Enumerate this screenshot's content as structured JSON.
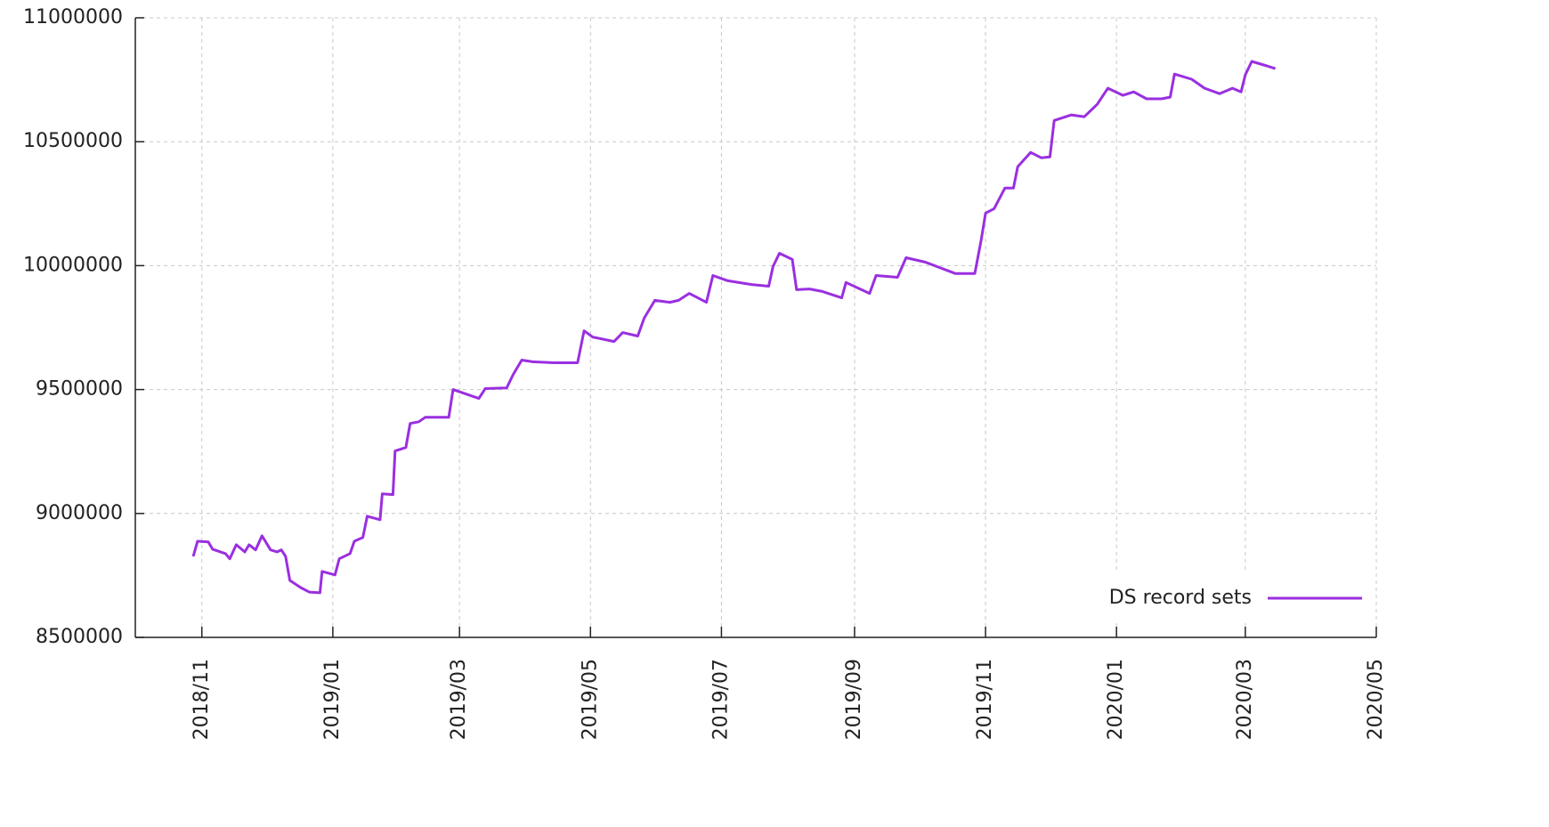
{
  "chart_data": {
    "type": "line",
    "x": [
      "2018-10-28",
      "2018-10-30",
      "2018-11-04",
      "2018-11-06",
      "2018-11-12",
      "2018-11-14",
      "2018-11-17",
      "2018-11-21",
      "2018-11-23",
      "2018-11-26",
      "2018-11-29",
      "2018-12-03",
      "2018-12-06",
      "2018-12-08",
      "2018-12-10",
      "2018-12-12",
      "2018-12-17",
      "2018-12-21",
      "2018-12-26",
      "2018-12-27",
      "2019-01-02",
      "2019-01-04",
      "2019-01-09",
      "2019-01-11",
      "2019-01-15",
      "2019-01-17",
      "2019-01-23",
      "2019-01-24",
      "2019-01-29",
      "2019-01-30",
      "2019-02-04",
      "2019-02-06",
      "2019-02-10",
      "2019-02-13",
      "2019-02-24",
      "2019-02-26",
      "2019-03-10",
      "2019-03-13",
      "2019-03-23",
      "2019-03-26",
      "2019-03-30",
      "2019-04-04",
      "2019-04-14",
      "2019-04-25",
      "2019-04-28",
      "2019-05-02",
      "2019-05-12",
      "2019-05-16",
      "2019-05-23",
      "2019-05-26",
      "2019-05-31",
      "2019-06-07",
      "2019-06-11",
      "2019-06-16",
      "2019-06-24",
      "2019-06-27",
      "2019-07-04",
      "2019-07-15",
      "2019-07-23",
      "2019-07-25",
      "2019-07-28",
      "2019-08-03",
      "2019-08-05",
      "2019-08-11",
      "2019-08-17",
      "2019-08-26",
      "2019-08-28",
      "2019-09-08",
      "2019-09-11",
      "2019-09-21",
      "2019-09-25",
      "2019-10-04",
      "2019-10-18",
      "2019-10-27",
      "2019-10-30",
      "2019-11-01",
      "2019-11-05",
      "2019-11-10",
      "2019-11-14",
      "2019-11-16",
      "2019-11-22",
      "2019-11-27",
      "2019-12-01",
      "2019-12-03",
      "2019-12-11",
      "2019-12-17",
      "2019-12-23",
      "2019-12-28",
      "2020-01-04",
      "2020-01-09",
      "2020-01-15",
      "2020-01-22",
      "2020-01-26",
      "2020-01-28",
      "2020-02-05",
      "2020-02-11",
      "2020-02-18",
      "2020-02-24",
      "2020-02-28",
      "2020-03-01",
      "2020-03-04",
      "2020-03-11",
      "2020-03-15"
    ],
    "series": [
      {
        "name": "DS record sets",
        "color": "#9a2fe0",
        "values": [
          8827000,
          8888000,
          8885000,
          8856000,
          8838000,
          8817000,
          8874000,
          8845000,
          8874000,
          8853000,
          8910000,
          8853000,
          8845000,
          8853000,
          8827000,
          8730000,
          8701000,
          8683000,
          8680000,
          8766000,
          8752000,
          8817000,
          8838000,
          8888000,
          8903000,
          8989000,
          8975000,
          9079000,
          9076000,
          9252000,
          9266000,
          9363000,
          9370000,
          9388000,
          9388000,
          9500000,
          9464000,
          9504000,
          9507000,
          9561000,
          9619000,
          9612000,
          9608000,
          9608000,
          9737000,
          9712000,
          9694000,
          9730000,
          9716000,
          9788000,
          9860000,
          9852000,
          9860000,
          9888000,
          9852000,
          9960000,
          9939000,
          9924000,
          9917000,
          9996000,
          10050000,
          10025000,
          9903000,
          9906000,
          9896000,
          9870000,
          9932000,
          9888000,
          9960000,
          9953000,
          10032000,
          10014000,
          9968000,
          9968000,
          10104000,
          10212000,
          10230000,
          10313000,
          10313000,
          10399000,
          10457000,
          10435000,
          10439000,
          10586000,
          10608000,
          10601000,
          10651000,
          10716000,
          10687000,
          10701000,
          10673000,
          10673000,
          10680000,
          10773000,
          10752000,
          10716000,
          10694000,
          10716000,
          10701000,
          10770000,
          10824000,
          10806000,
          10795000
        ]
      }
    ],
    "xlim": [
      "2018/10",
      "2020/05"
    ],
    "xticks": [
      "2018/11",
      "2019/01",
      "2019/03",
      "2019/05",
      "2019/07",
      "2019/09",
      "2019/11",
      "2020/01",
      "2020/03",
      "2020/05"
    ],
    "ylim": [
      8500000,
      11000000
    ],
    "yticks": [
      8500000,
      9000000,
      9500000,
      10000000,
      10500000,
      11000000
    ],
    "grid": true,
    "legend": "lower right"
  }
}
